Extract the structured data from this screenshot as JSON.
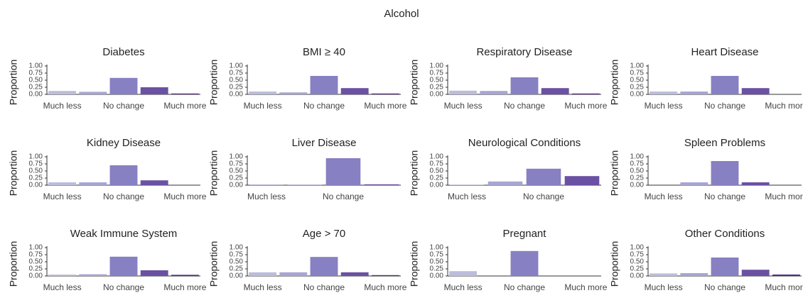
{
  "title": "Alcohol",
  "chart_data": [
    {
      "type": "bar",
      "title": "Diabetes",
      "ylabel": "Proportion",
      "categories": [
        "Much less",
        null,
        "No change",
        null,
        "Much more"
      ],
      "values": [
        0.12,
        0.09,
        0.58,
        0.25,
        0.03
      ],
      "colors": [
        "#bcbddc",
        "#a8a6d3",
        "#8780c2",
        "#6a51a3",
        "#54278f"
      ],
      "ylim": [
        0,
        1
      ],
      "yticks": [
        {
          "value": 0,
          "label": "0.00"
        },
        {
          "value": 0.25,
          "label": "0.25"
        },
        {
          "value": 0.5,
          "label": "0.50"
        },
        {
          "value": 0.75,
          "label": "0.75"
        },
        {
          "value": 1,
          "label": "1.00"
        }
      ]
    },
    {
      "type": "bar",
      "title": "BMI ≥ 40",
      "ylabel": "Proportion",
      "categories": [
        "Much less",
        null,
        "No change",
        null,
        "Much more"
      ],
      "values": [
        0.1,
        0.07,
        0.65,
        0.22,
        0.03
      ],
      "colors": [
        "#bcbddc",
        "#a8a6d3",
        "#8780c2",
        "#6a51a3",
        "#54278f"
      ],
      "ylim": [
        0,
        1
      ],
      "yticks": [
        {
          "value": 0,
          "label": "0.00"
        },
        {
          "value": 0.25,
          "label": "0.25"
        },
        {
          "value": 0.5,
          "label": "0.50"
        },
        {
          "value": 0.75,
          "label": "0.75"
        },
        {
          "value": 1,
          "label": "1.00"
        }
      ]
    },
    {
      "type": "bar",
      "title": "Respiratory Disease",
      "ylabel": "Proportion",
      "categories": [
        "Much less",
        null,
        "No change",
        null,
        "Much more"
      ],
      "values": [
        0.13,
        0.12,
        0.6,
        0.22,
        0.03
      ],
      "colors": [
        "#bcbddc",
        "#a8a6d3",
        "#8780c2",
        "#6a51a3",
        "#54278f"
      ],
      "ylim": [
        0,
        1
      ],
      "yticks": [
        {
          "value": 0,
          "label": "0.00"
        },
        {
          "value": 0.25,
          "label": "0.25"
        },
        {
          "value": 0.5,
          "label": "0.50"
        },
        {
          "value": 0.75,
          "label": "0.75"
        },
        {
          "value": 1,
          "label": "1.00"
        }
      ]
    },
    {
      "type": "bar",
      "title": "Heart Disease",
      "ylabel": "Proportion",
      "categories": [
        "Much less",
        null,
        "No change",
        null,
        "Much more"
      ],
      "values": [
        0.1,
        0.1,
        0.65,
        0.22,
        0
      ],
      "colors": [
        "#bcbddc",
        "#a8a6d3",
        "#8780c2",
        "#6a51a3",
        "#54278f"
      ],
      "ylim": [
        0,
        1
      ],
      "yticks": [
        {
          "value": 0,
          "label": "0.00"
        },
        {
          "value": 0.25,
          "label": "0.25"
        },
        {
          "value": 0.5,
          "label": "0.50"
        },
        {
          "value": 0.75,
          "label": "0.75"
        },
        {
          "value": 1,
          "label": "1.00"
        }
      ]
    },
    {
      "type": "bar",
      "title": "Kidney Disease",
      "ylabel": "Proportion",
      "categories": [
        "Much less",
        null,
        "No change",
        null,
        "Much more"
      ],
      "values": [
        0.1,
        0.1,
        0.7,
        0.17,
        0
      ],
      "colors": [
        "#bcbddc",
        "#a8a6d3",
        "#8780c2",
        "#6a51a3",
        "#54278f"
      ],
      "ylim": [
        0,
        1
      ],
      "yticks": [
        {
          "value": 0,
          "label": "0.00"
        },
        {
          "value": 0.25,
          "label": "0.25"
        },
        {
          "value": 0.5,
          "label": "0.50"
        },
        {
          "value": 0.75,
          "label": "0.75"
        },
        {
          "value": 1,
          "label": "1.00"
        }
      ]
    },
    {
      "type": "bar",
      "title": "Liver Disease",
      "ylabel": "Proportion",
      "categories": [
        "Much less",
        null,
        "No change",
        null
      ],
      "values": [
        0.03,
        0.02,
        0.95,
        0.03
      ],
      "colors": [
        "#bcbddc",
        "#a8a6d3",
        "#8780c2",
        "#6a51a3"
      ],
      "ylim": [
        0,
        1
      ],
      "yticks": [
        {
          "value": 0,
          "label": "0.00"
        },
        {
          "value": 0.25,
          "label": "0.25"
        },
        {
          "value": 0.5,
          "label": "0.50"
        },
        {
          "value": 0.75,
          "label": "0.75"
        },
        {
          "value": 1,
          "label": "1.00"
        }
      ]
    },
    {
      "type": "bar",
      "title": "Neurological Conditions",
      "ylabel": "Proportion",
      "categories": [
        "Much less",
        null,
        "No change",
        null
      ],
      "values": [
        0.02,
        0.13,
        0.58,
        0.32
      ],
      "colors": [
        "#bcbddc",
        "#a8a6d3",
        "#8780c2",
        "#6a51a3"
      ],
      "ylim": [
        0,
        1
      ],
      "yticks": [
        {
          "value": 0,
          "label": "0.00"
        },
        {
          "value": 0.25,
          "label": "0.25"
        },
        {
          "value": 0.5,
          "label": "0.50"
        },
        {
          "value": 0.75,
          "label": "0.75"
        },
        {
          "value": 1,
          "label": "1.00"
        }
      ]
    },
    {
      "type": "bar",
      "title": "Spleen Problems",
      "ylabel": "Proportion",
      "categories": [
        "Much less",
        null,
        "No change",
        null,
        "Much more"
      ],
      "values": [
        0,
        0.1,
        0.85,
        0.1,
        0
      ],
      "colors": [
        "#bcbddc",
        "#a8a6d3",
        "#8780c2",
        "#6a51a3",
        "#54278f"
      ],
      "ylim": [
        0,
        1
      ],
      "yticks": [
        {
          "value": 0,
          "label": "0.00"
        },
        {
          "value": 0.25,
          "label": "0.25"
        },
        {
          "value": 0.5,
          "label": "0.50"
        },
        {
          "value": 0.75,
          "label": "0.75"
        },
        {
          "value": 1,
          "label": "1.00"
        }
      ]
    },
    {
      "type": "bar",
      "title": "Weak Immune System",
      "ylabel": "Proportion",
      "categories": [
        "Much less",
        null,
        "No change",
        null,
        "Much more"
      ],
      "values": [
        0.05,
        0.06,
        0.68,
        0.2,
        0.04
      ],
      "colors": [
        "#bcbddc",
        "#a8a6d3",
        "#8780c2",
        "#6a51a3",
        "#54278f"
      ],
      "ylim": [
        0,
        1
      ],
      "yticks": [
        {
          "value": 0,
          "label": "0.00"
        },
        {
          "value": 0.25,
          "label": "0.25"
        },
        {
          "value": 0.5,
          "label": "0.50"
        },
        {
          "value": 0.75,
          "label": "0.75"
        },
        {
          "value": 1,
          "label": "1.00"
        }
      ]
    },
    {
      "type": "bar",
      "title": "Age > 70",
      "ylabel": "Proportion",
      "categories": [
        "Much less",
        null,
        "No change",
        null,
        "Much more"
      ],
      "values": [
        0.13,
        0.13,
        0.67,
        0.13,
        0.03
      ],
      "colors": [
        "#bcbddc",
        "#a8a6d3",
        "#8780c2",
        "#6a51a3",
        "#54278f"
      ],
      "ylim": [
        0,
        1
      ],
      "yticks": [
        {
          "value": 0,
          "label": "0.00"
        },
        {
          "value": 0.25,
          "label": "0.25"
        },
        {
          "value": 0.5,
          "label": "0.50"
        },
        {
          "value": 0.75,
          "label": "0.75"
        },
        {
          "value": 1,
          "label": "1.00"
        }
      ]
    },
    {
      "type": "bar",
      "title": "Pregnant",
      "ylabel": "Proportion",
      "categories": [
        "Much less",
        null,
        "No change",
        null,
        "Much more"
      ],
      "values": [
        0.17,
        0,
        0.88,
        0,
        0
      ],
      "colors": [
        "#bcbddc",
        "#a8a6d3",
        "#8780c2",
        "#6a51a3",
        "#54278f"
      ],
      "ylim": [
        0,
        1
      ],
      "yticks": [
        {
          "value": 0,
          "label": "0.00"
        },
        {
          "value": 0.25,
          "label": "0.25"
        },
        {
          "value": 0.5,
          "label": "0.50"
        },
        {
          "value": 0.75,
          "label": "0.75"
        },
        {
          "value": 1,
          "label": "1.00"
        }
      ]
    },
    {
      "type": "bar",
      "title": "Other Conditions",
      "ylabel": "Proportion",
      "categories": [
        "Much less",
        null,
        "No change",
        null,
        "Much more"
      ],
      "values": [
        0.09,
        0.1,
        0.65,
        0.22,
        0.05
      ],
      "colors": [
        "#bcbddc",
        "#a8a6d3",
        "#8780c2",
        "#6a51a3",
        "#54278f"
      ],
      "ylim": [
        0,
        1
      ],
      "yticks": [
        {
          "value": 0,
          "label": "0.00"
        },
        {
          "value": 0.25,
          "label": "0.25"
        },
        {
          "value": 0.5,
          "label": "0.50"
        },
        {
          "value": 0.75,
          "label": "0.75"
        },
        {
          "value": 1,
          "label": "1.00"
        }
      ]
    }
  ]
}
